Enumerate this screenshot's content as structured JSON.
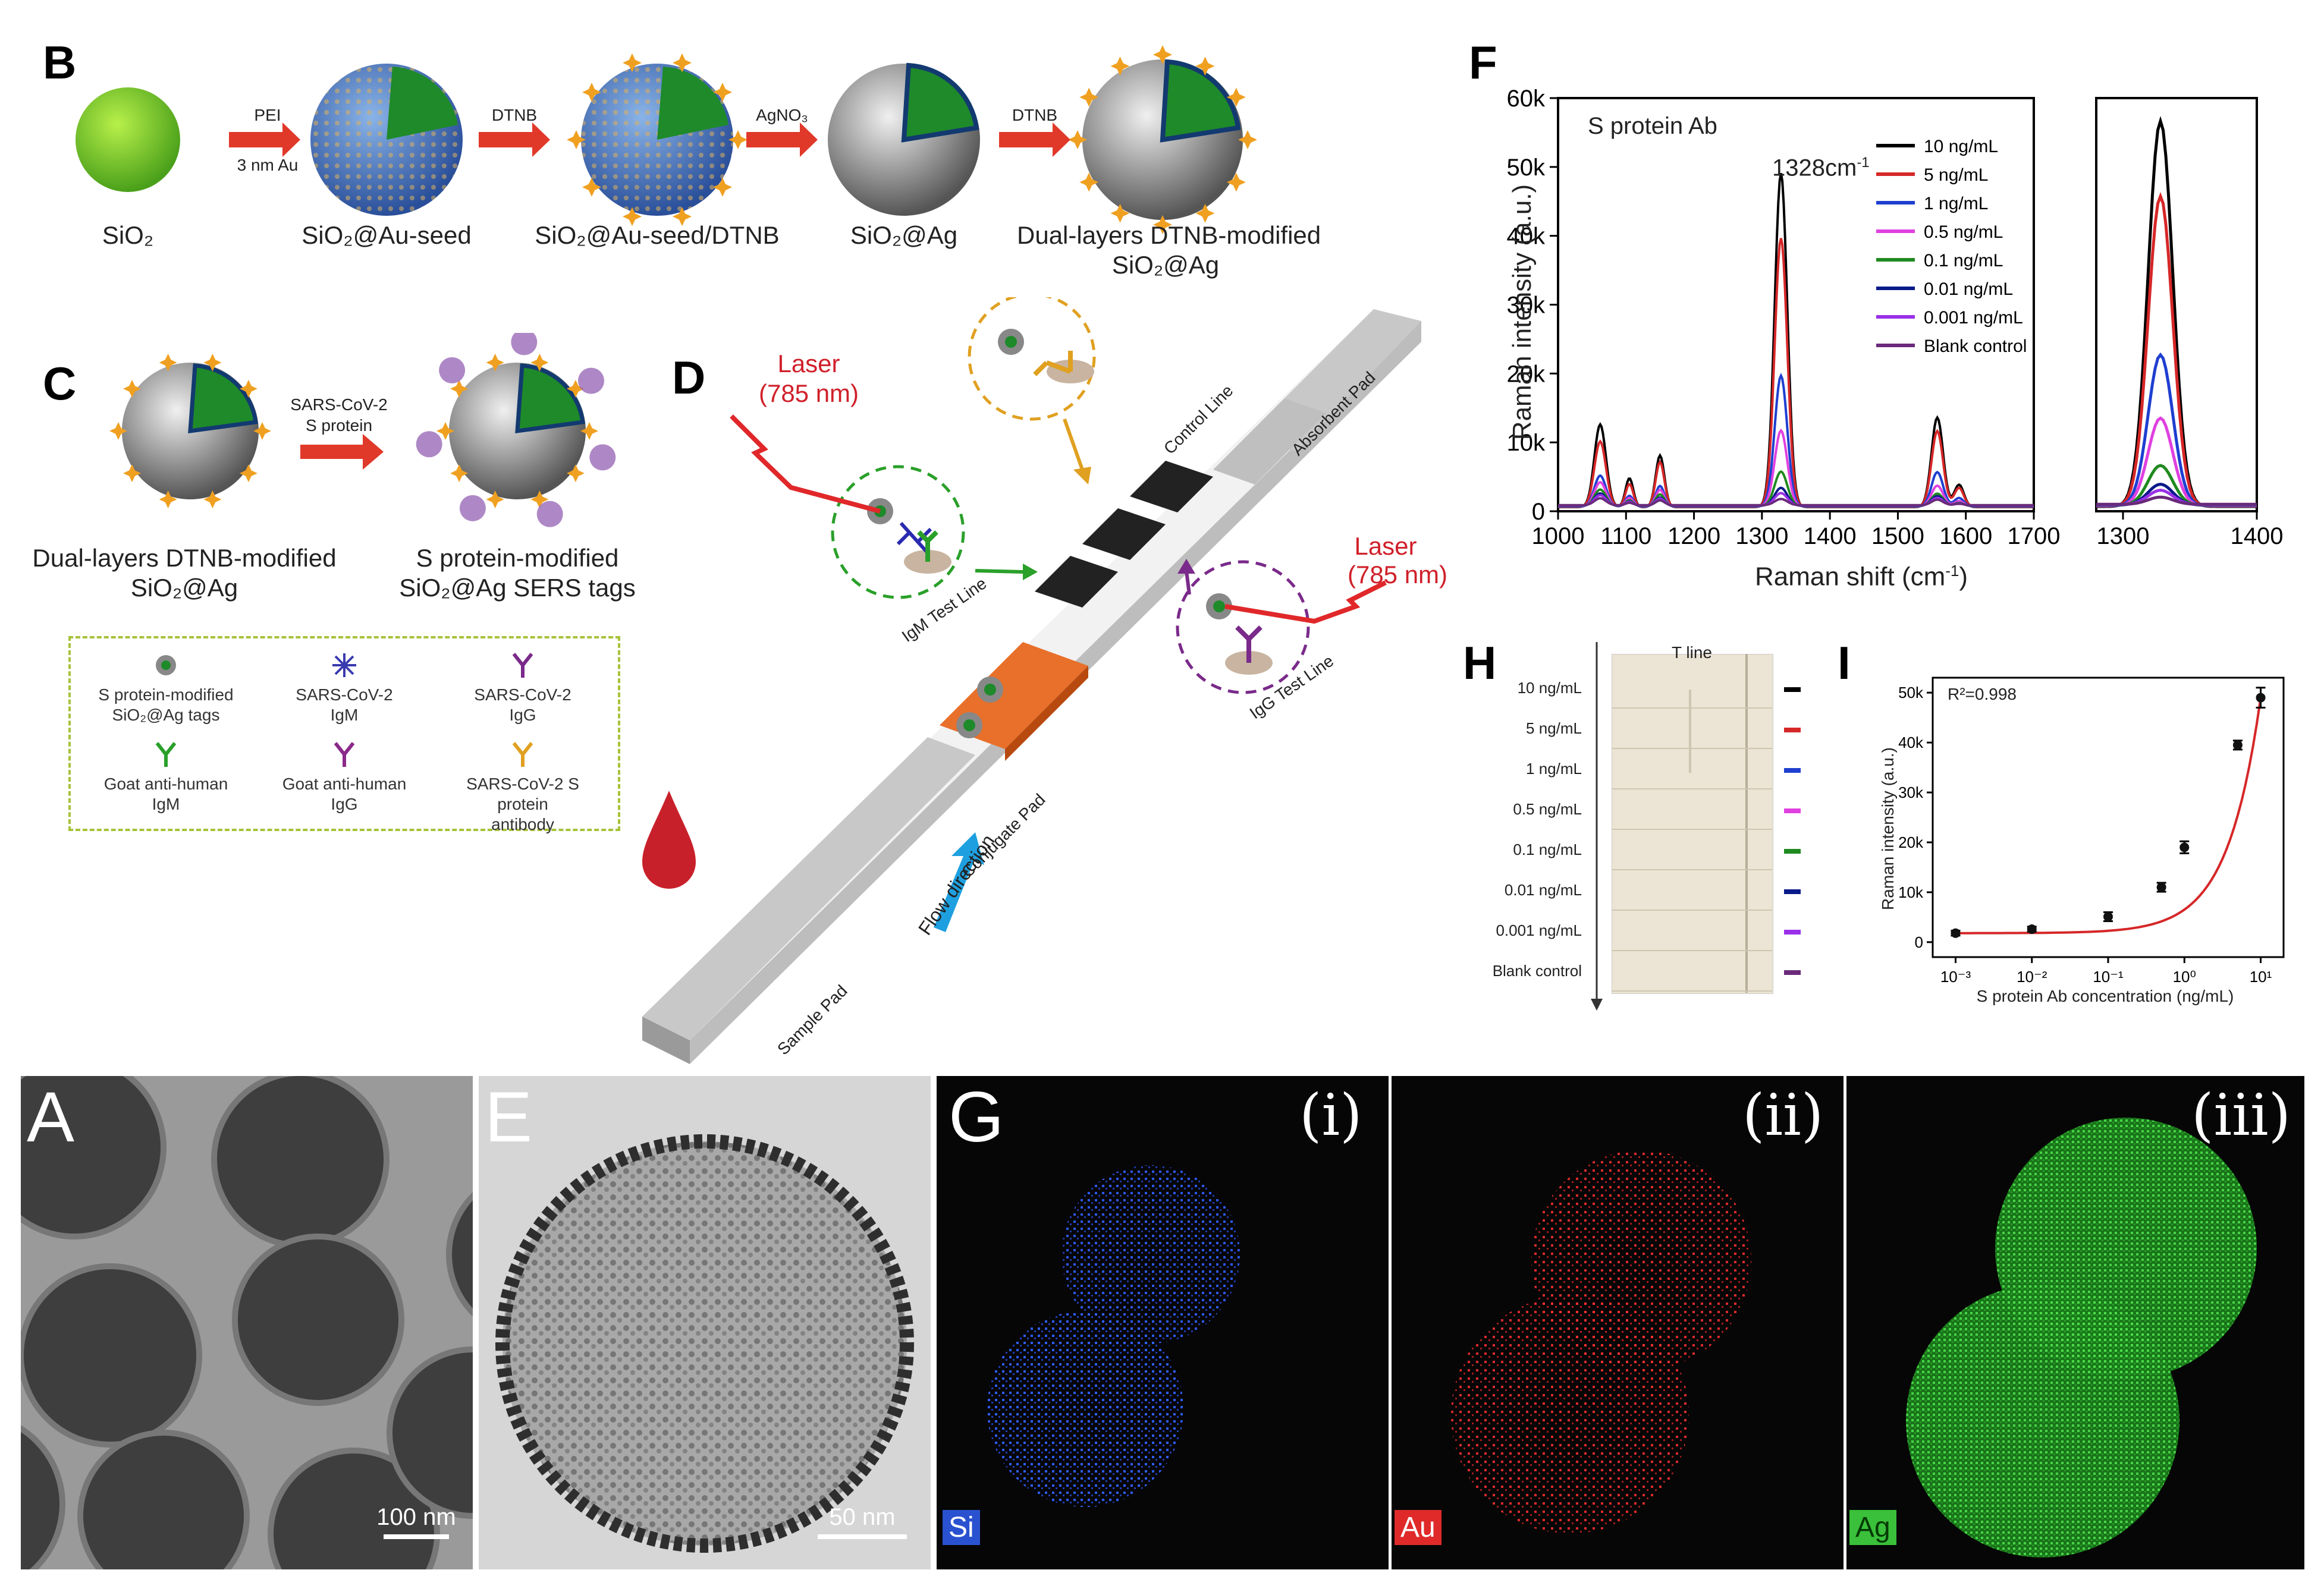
{
  "panels": {
    "B": {
      "label": "B",
      "captions": [
        "SiO₂",
        "SiO₂@Au-seed",
        "SiO₂@Au-seed/DTNB",
        "SiO₂@Ag",
        "Dual-layers DTNB-modified",
        "SiO₂@Ag"
      ],
      "arrows": [
        "PEI",
        "3 nm Au",
        "DTNB",
        "AgNO₃",
        "DTNB"
      ]
    },
    "C": {
      "label": "C",
      "arrow_top": "SARS-CoV-2",
      "arrow_bottom": "S protein",
      "left_caption_1": "Dual-layers DTNB-modified",
      "left_caption_2": "SiO₂@Ag",
      "right_caption_1": "S protein-modified",
      "right_caption_2": "SiO₂@Ag SERS tags",
      "legend": [
        {
          "line1": "S protein-modified",
          "line2": "SiO₂@Ag tags",
          "color": "#888888"
        },
        {
          "line1": "SARS-CoV-2",
          "line2": "IgM",
          "color": "#3a3ab0"
        },
        {
          "line1": "SARS-CoV-2",
          "line2": "IgG",
          "color": "#7a2a8a"
        },
        {
          "line1": "Goat anti-human",
          "line2": "IgM",
          "color": "#2aa02a"
        },
        {
          "line1": "Goat anti-human",
          "line2": "IgG",
          "color": "#8a2a8a"
        },
        {
          "line1": "SARS-CoV-2 S protein",
          "line2": "antibody",
          "color": "#e0a020"
        }
      ]
    },
    "D": {
      "label": "D",
      "laser_1": "Laser",
      "laser_1b": "(785 nm)",
      "laser_2": "Laser",
      "laser_2b": "(785 nm)",
      "strip_labels": [
        "Sample Pad",
        "Conjugate Pad",
        "Absorbent Pad",
        "Control Line",
        "IgM Test Line",
        "IgG Test Line",
        "Flow direction"
      ]
    },
    "F": {
      "label": "F",
      "title": "S protein Ab",
      "peak_label": "1328cm",
      "peak_sup": "-1",
      "xlabel": "Raman shift (cm",
      "xlabel_sup": "-1",
      "xlabel_end": ")",
      "ylabel": "Raman intensity (a.u.)"
    },
    "H": {
      "label": "H",
      "header": "T line",
      "rows": [
        "10 ng/mL",
        "5 ng/mL",
        "1 ng/mL",
        "0.5 ng/mL",
        "0.1 ng/mL",
        "0.01 ng/mL",
        "0.001 ng/mL",
        "Blank control"
      ]
    },
    "I": {
      "label": "I",
      "r2": "R²=0.998",
      "xlabel": "S protein Ab concentration (ng/mL)",
      "ylabel": "Raman intensity (a.u.)"
    },
    "A": {
      "label": "A",
      "scale": "100 nm"
    },
    "E": {
      "label": "E",
      "scale": "50 nm"
    },
    "G": {
      "label": "G",
      "maps": [
        {
          "roman": "(i)",
          "element": "Si",
          "color": "#2a52d0"
        },
        {
          "roman": "(ii)",
          "element": "Au",
          "color": "#e02a2a"
        },
        {
          "roman": "(iii)",
          "element": "Ag",
          "color": "#3ac03a"
        }
      ]
    }
  },
  "chart_data": [
    {
      "type": "line",
      "title": "S protein Ab",
      "xlabel": "Raman shift (cm-1)",
      "ylabel": "Raman intensity (a.u.)",
      "xlim": [
        1000,
        1700
      ],
      "ylim": [
        0,
        60000
      ],
      "xticks": [
        "1000",
        "1100",
        "1200",
        "1300",
        "1400",
        "1500",
        "1600",
        "1700"
      ],
      "yticks": [
        "0",
        "10k",
        "20k",
        "30k",
        "40k",
        "50k",
        "60k"
      ],
      "inset_xticks": [
        "1300",
        "1400"
      ],
      "inset_xlim": [
        1280,
        1400
      ],
      "peaks_cm": [
        1062,
        1150,
        1328,
        1558
      ],
      "series": [
        {
          "name": "10 ng/mL",
          "color": "#000000",
          "peak_values": [
            12000,
            7500,
            48500,
            13000
          ]
        },
        {
          "name": "5 ng/mL",
          "color": "#d62728",
          "peak_values": [
            9500,
            6500,
            39000,
            11000
          ]
        },
        {
          "name": "1 ng/mL",
          "color": "#1f3fd0",
          "peak_values": [
            4500,
            3000,
            19000,
            5000
          ]
        },
        {
          "name": "0.5 ng/mL",
          "color": "#e040e0",
          "peak_values": [
            3500,
            2400,
            11000,
            3000
          ]
        },
        {
          "name": "0.1 ng/mL",
          "color": "#1f8a1f",
          "peak_values": [
            2400,
            1700,
            5000,
            1800
          ]
        },
        {
          "name": "0.01 ng/mL",
          "color": "#0a1a8a",
          "peak_values": [
            1800,
            1200,
            2600,
            1400
          ]
        },
        {
          "name": "0.001 ng/mL",
          "color": "#9a30e8",
          "peak_values": [
            1500,
            1000,
            1800,
            1100
          ]
        },
        {
          "name": "Blank control",
          "color": "#6a2a7a",
          "peak_values": [
            1000,
            700,
            900,
            800
          ]
        }
      ]
    },
    {
      "type": "scatter",
      "title": "",
      "xlabel": "S protein Ab concentration (ng/mL)",
      "ylabel": "Raman intensity (a.u.)",
      "xscale": "log",
      "xticks": [
        "10⁻³",
        "10⁻²",
        "10⁻¹",
        "10⁰",
        "10¹"
      ],
      "yticks": [
        "0",
        "10k",
        "20k",
        "30k",
        "40k",
        "50k"
      ],
      "ylim": [
        -3000,
        53000
      ],
      "x": [
        0.001,
        0.01,
        0.1,
        0.5,
        1,
        5,
        10
      ],
      "y": [
        1800,
        2600,
        5100,
        11000,
        19000,
        39500,
        49000
      ],
      "err": [
        500,
        500,
        900,
        900,
        1200,
        900,
        2000
      ],
      "annotation": "R²=0.998"
    }
  ]
}
